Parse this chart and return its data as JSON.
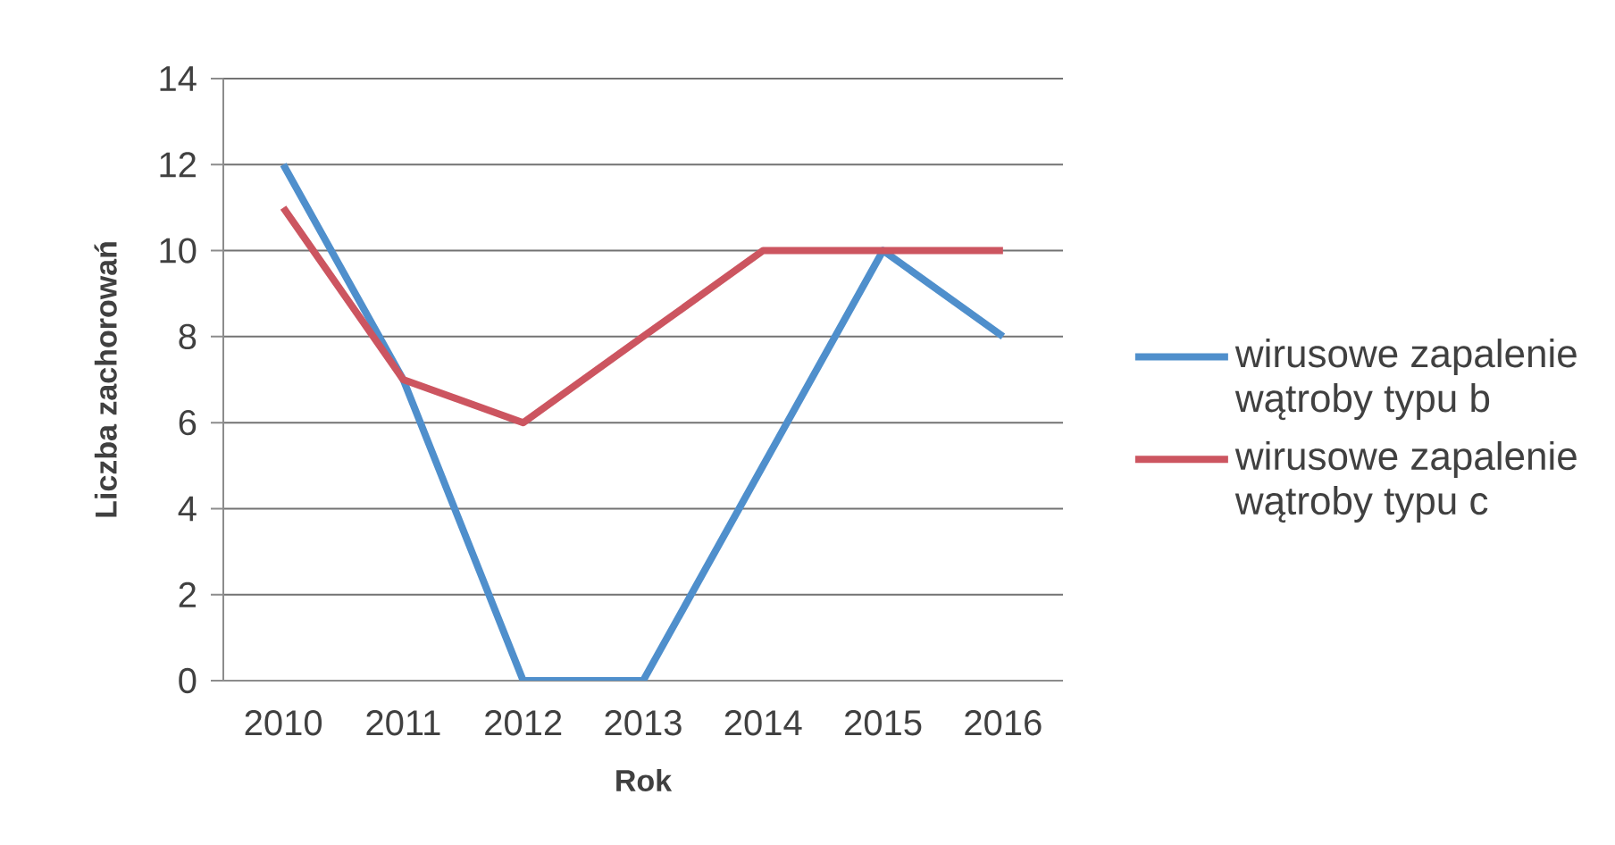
{
  "chart_data": {
    "type": "line",
    "xlabel": "Rok",
    "ylabel": "Liczba zachorowań",
    "categories": [
      "2010",
      "2011",
      "2012",
      "2013",
      "2014",
      "2015",
      "2016"
    ],
    "series": [
      {
        "name": "wirusowe zapalenie wątroby typu b",
        "color": "#4f8fcc",
        "values": [
          12,
          7,
          0,
          0,
          5,
          10,
          8
        ]
      },
      {
        "name": "wirusowe zapalenie wątroby typu c",
        "color": "#cc5560",
        "values": [
          11,
          7,
          6,
          8,
          10,
          10,
          10
        ]
      }
    ],
    "ylim": [
      0,
      14
    ],
    "yticks": [
      0,
      2,
      4,
      6,
      8,
      10,
      12,
      14
    ],
    "grid": "y",
    "legend": "right"
  }
}
